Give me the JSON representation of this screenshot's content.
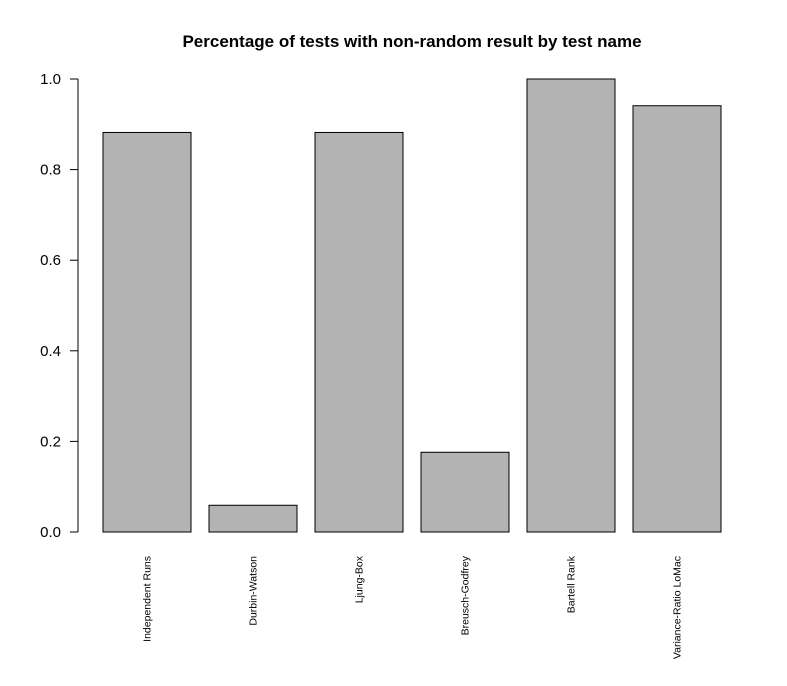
{
  "chart_data": {
    "type": "bar",
    "title": "Percentage of tests with non-random result by test name",
    "xlabel": "",
    "ylabel": "",
    "categories": [
      "Independent Runs",
      "Durbin-Watson",
      "Ljung-Box",
      "Breusch-Godfrey",
      "Bartell Rank",
      "Variance-Ratio LoMac"
    ],
    "values": [
      0.882,
      0.059,
      0.882,
      0.176,
      1.0,
      0.941
    ],
    "ylim": [
      0,
      1
    ],
    "yticks": [
      0.0,
      0.2,
      0.4,
      0.6,
      0.8,
      1.0
    ],
    "ytick_labels": [
      "0.0",
      "0.2",
      "0.4",
      "0.6",
      "0.8",
      "1.0"
    ],
    "grid": false,
    "legend": "none",
    "colors": {
      "bar_fill": "#b3b3b3",
      "bar_stroke": "#000000",
      "axis": "#000000"
    }
  }
}
